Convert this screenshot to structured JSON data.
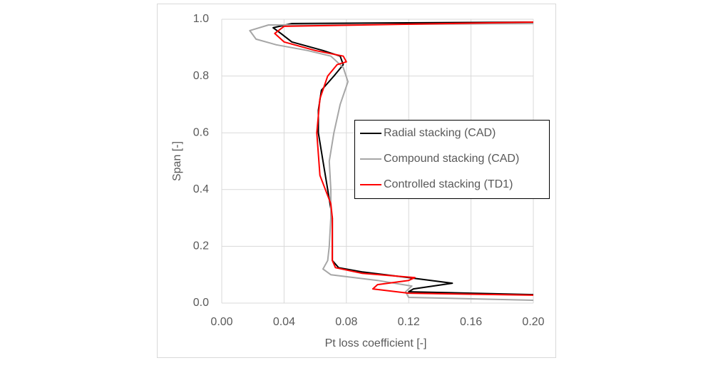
{
  "chart_data": {
    "type": "line",
    "xlabel": "Pt loss coefficient [-]",
    "ylabel": "Span [-]",
    "xlim": [
      0,
      0.2
    ],
    "ylim": [
      0,
      1
    ],
    "xticks": [
      {
        "value": 0,
        "label": "0.00"
      },
      {
        "value": 0.04,
        "label": "0.04"
      },
      {
        "value": 0.08,
        "label": "0.08"
      },
      {
        "value": 0.12,
        "label": "0.12"
      },
      {
        "value": 0.16,
        "label": "0.16"
      },
      {
        "value": 0.2,
        "label": "0.20"
      }
    ],
    "yticks": [
      {
        "value": 0,
        "label": "0.0"
      },
      {
        "value": 0.2,
        "label": "0.2"
      },
      {
        "value": 0.4,
        "label": "0.4"
      },
      {
        "value": 0.6,
        "label": "0.6"
      },
      {
        "value": 0.8,
        "label": "0.8"
      },
      {
        "value": 1,
        "label": "1.0"
      }
    ],
    "grid": true,
    "legend": "right",
    "series": [
      {
        "name": "Radial stacking (CAD)",
        "color": "#000000",
        "x": [
          0.2,
          0.12,
          0.123,
          0.148,
          0.12,
          0.09,
          0.075,
          0.071,
          0.071,
          0.071,
          0.068,
          0.065,
          0.062,
          0.062,
          0.064,
          0.072,
          0.078,
          0.076,
          0.065,
          0.045,
          0.038,
          0.033,
          0.045,
          0.2
        ],
        "values": [
          0.03,
          0.04,
          0.05,
          0.07,
          0.09,
          0.11,
          0.125,
          0.15,
          0.2,
          0.3,
          0.4,
          0.5,
          0.6,
          0.68,
          0.75,
          0.8,
          0.84,
          0.87,
          0.89,
          0.92,
          0.95,
          0.97,
          0.985,
          0.99
        ]
      },
      {
        "name": "Compound stacking (CAD)",
        "color": "#a6a6a6",
        "x": [
          0.2,
          0.12,
          0.118,
          0.122,
          0.1,
          0.07,
          0.065,
          0.068,
          0.069,
          0.07,
          0.07,
          0.069,
          0.072,
          0.076,
          0.081,
          0.078,
          0.07,
          0.055,
          0.035,
          0.022,
          0.018,
          0.03,
          0.2
        ],
        "values": [
          0.01,
          0.02,
          0.04,
          0.06,
          0.08,
          0.1,
          0.12,
          0.15,
          0.2,
          0.3,
          0.4,
          0.5,
          0.6,
          0.7,
          0.78,
          0.83,
          0.87,
          0.89,
          0.91,
          0.93,
          0.96,
          0.98,
          0.985
        ]
      },
      {
        "name": "Controlled stacking (TD1)",
        "color": "#ff0000",
        "x": [
          0.2,
          0.12,
          0.097,
          0.1,
          0.12,
          0.124,
          0.09,
          0.073,
          0.071,
          0.071,
          0.07,
          0.063,
          0.061,
          0.063,
          0.068,
          0.074,
          0.08,
          0.078,
          0.06,
          0.04,
          0.034,
          0.04,
          0.2
        ],
        "values": [
          0.028,
          0.035,
          0.05,
          0.065,
          0.08,
          0.09,
          0.105,
          0.125,
          0.15,
          0.3,
          0.35,
          0.45,
          0.6,
          0.72,
          0.8,
          0.84,
          0.85,
          0.87,
          0.89,
          0.92,
          0.95,
          0.975,
          0.99
        ]
      }
    ]
  }
}
